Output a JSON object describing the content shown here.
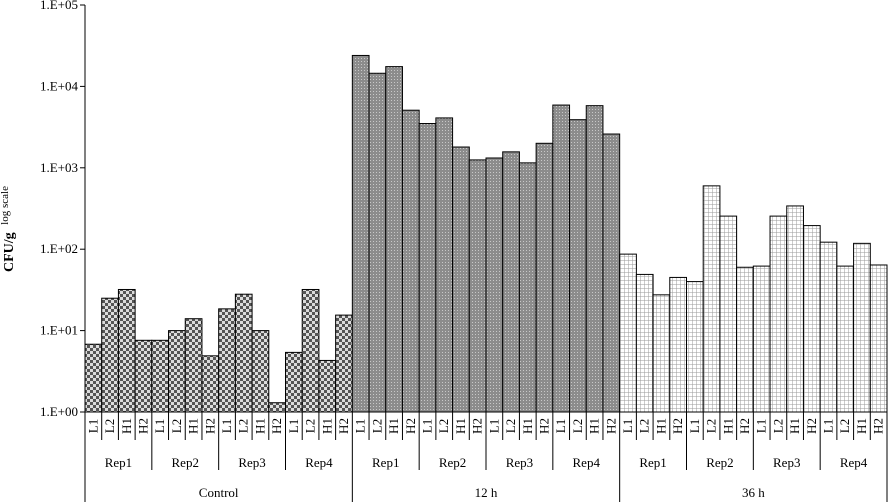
{
  "chart_data": {
    "type": "bar",
    "title": "",
    "xlabel": "",
    "ylabel": "CFU/g",
    "ylabel_suffix": "log scale",
    "yscale": "log",
    "ylim": [
      1,
      100000
    ],
    "ytick_labels": [
      "1.E+00",
      "1.E+01",
      "1.E+02",
      "1.E+03",
      "1.E+04",
      "1.E+05"
    ],
    "ytick_values": [
      1,
      10,
      100,
      1000,
      10000,
      100000
    ],
    "grid": false,
    "legend": "none",
    "level3": [
      "L1",
      "L2",
      "H1",
      "H2"
    ],
    "groups": [
      {
        "name": "Control",
        "pattern": "checker",
        "reps": [
          {
            "name": "Rep1",
            "values": [
              6.8,
              25,
              32,
              7.6
            ]
          },
          {
            "name": "Rep2",
            "values": [
              7.6,
              10,
              14,
              4.9
            ]
          },
          {
            "name": "Rep3",
            "values": [
              18.5,
              28,
              10,
              1.3
            ]
          },
          {
            "name": "Rep4",
            "values": [
              5.4,
              32,
              4.3,
              15.5
            ]
          }
        ]
      },
      {
        "name": "12 h",
        "pattern": "fine-dots",
        "reps": [
          {
            "name": "Rep1",
            "values": [
              24000,
              14500,
              17500,
              5100
            ]
          },
          {
            "name": "Rep2",
            "values": [
              3500,
              4100,
              1800,
              1250
            ]
          },
          {
            "name": "Rep3",
            "values": [
              1320,
              1570,
              1150,
              2000
            ]
          },
          {
            "name": "Rep4",
            "values": [
              5900,
              3900,
              5800,
              2600
            ]
          }
        ]
      },
      {
        "name": "36 h",
        "pattern": "grid",
        "reps": [
          {
            "name": "Rep1",
            "values": [
              87,
              49,
              27.5,
              45
            ]
          },
          {
            "name": "Rep2",
            "values": [
              40,
              600,
              255,
              60
            ]
          },
          {
            "name": "Rep3",
            "values": [
              62,
              255,
              340,
              195
            ]
          },
          {
            "name": "Rep4",
            "values": [
              122,
              62,
              118,
              64
            ]
          }
        ]
      }
    ],
    "colors": {
      "checker_dark": "#555555",
      "checker_light": "#dcdcdc",
      "dots_base": "#8c8c8c",
      "dots_light": "#c8c8c8",
      "grid_base": "#ffffff",
      "grid_line": "#9a9a9a",
      "axis": "#000000"
    }
  }
}
